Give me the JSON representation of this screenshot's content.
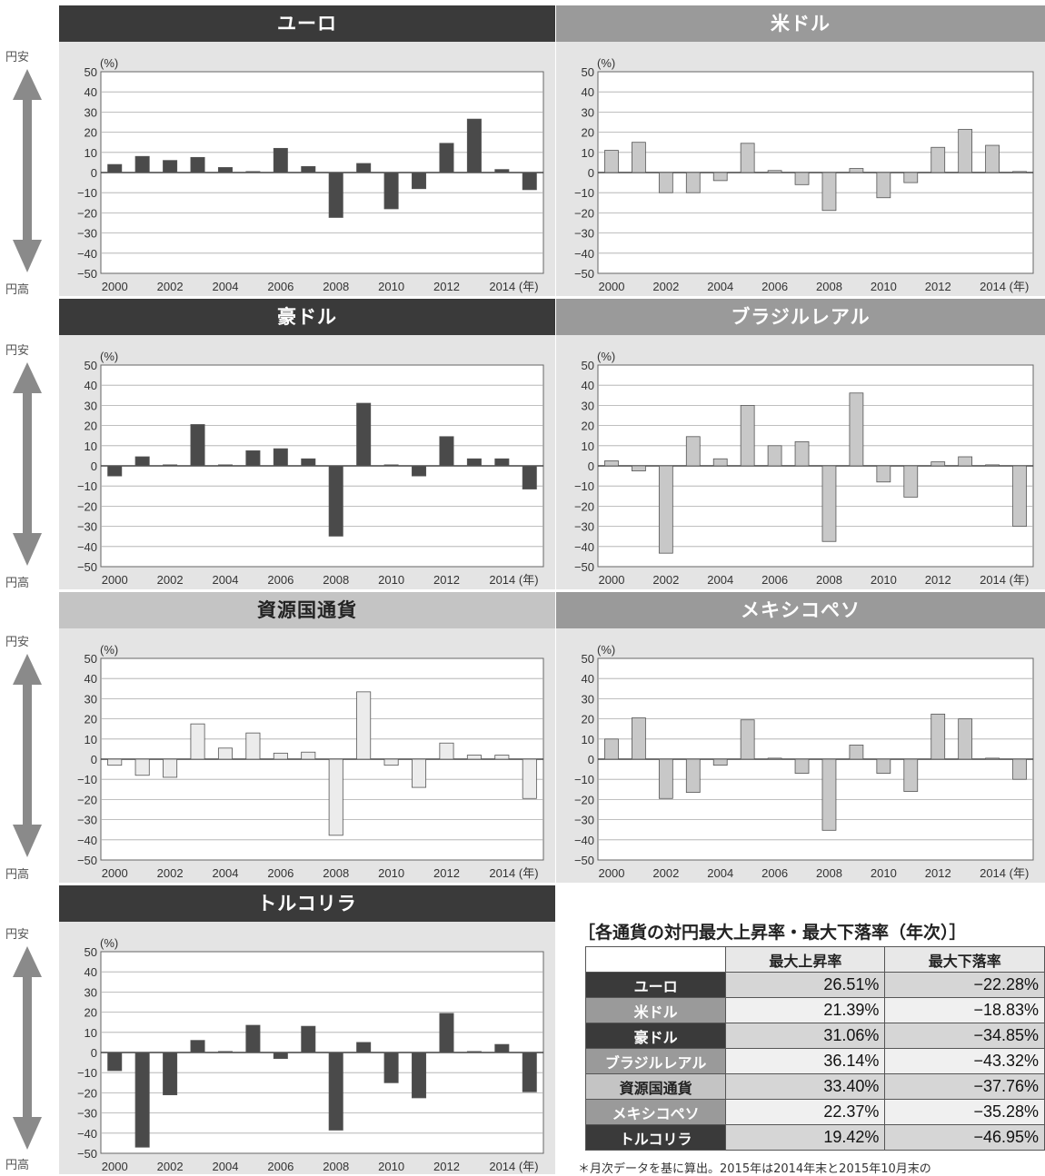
{
  "side": {
    "top": "円安",
    "bottom": "円高"
  },
  "chart_data": [
    {
      "type": "bar",
      "title": "ユーロ",
      "ylabel": "(%)",
      "xlabel": "(年)",
      "ylim": [
        -50,
        50
      ],
      "x": [
        2000,
        2001,
        2002,
        2003,
        2004,
        2005,
        2006,
        2007,
        2008,
        2009,
        2010,
        2011,
        2012,
        2013,
        2014,
        2015
      ],
      "values": [
        4,
        8,
        6,
        7.5,
        2.5,
        0.5,
        12,
        3,
        -22.28,
        4.5,
        -18,
        -8,
        14.5,
        26.51,
        1.5,
        -8.5
      ],
      "color": "#4a4a4a"
    },
    {
      "type": "bar",
      "title": "米ドル",
      "ylabel": "(%)",
      "xlabel": "(年)",
      "ylim": [
        -50,
        50
      ],
      "x": [
        2000,
        2001,
        2002,
        2003,
        2004,
        2005,
        2006,
        2007,
        2008,
        2009,
        2010,
        2011,
        2012,
        2013,
        2014,
        2015
      ],
      "values": [
        11,
        15,
        -10,
        -10,
        -4,
        14.5,
        1,
        -6,
        -18.83,
        2,
        -12.5,
        -5,
        12.5,
        21.39,
        13.5,
        0.5
      ],
      "color": "#c8c8c8"
    },
    {
      "type": "bar",
      "title": "豪ドル",
      "ylabel": "(%)",
      "xlabel": "(年)",
      "ylim": [
        -50,
        50
      ],
      "x": [
        2000,
        2001,
        2002,
        2003,
        2004,
        2005,
        2006,
        2007,
        2008,
        2009,
        2010,
        2011,
        2012,
        2013,
        2014,
        2015
      ],
      "values": [
        -5,
        4.5,
        0.5,
        20.5,
        0.5,
        7.5,
        8.5,
        3.5,
        -34.85,
        31.06,
        0.5,
        -5,
        14.5,
        3.5,
        3.5,
        -11.5
      ],
      "color": "#4a4a4a"
    },
    {
      "type": "bar",
      "title": "ブラジルレアル",
      "ylabel": "(%)",
      "xlabel": "(年)",
      "ylim": [
        -50,
        50
      ],
      "x": [
        2000,
        2001,
        2002,
        2003,
        2004,
        2005,
        2006,
        2007,
        2008,
        2009,
        2010,
        2011,
        2012,
        2013,
        2014,
        2015
      ],
      "values": [
        2.5,
        -2.5,
        -43.32,
        14.5,
        3.5,
        30,
        10,
        12,
        -37.5,
        36.14,
        -8,
        -15.5,
        2,
        4.5,
        0.5,
        -30
      ],
      "color": "#c8c8c8"
    },
    {
      "type": "bar",
      "title": "資源国通貨",
      "ylabel": "(%)",
      "xlabel": "(年)",
      "ylim": [
        -50,
        50
      ],
      "x": [
        2000,
        2001,
        2002,
        2003,
        2004,
        2005,
        2006,
        2007,
        2008,
        2009,
        2010,
        2011,
        2012,
        2013,
        2014,
        2015
      ],
      "values": [
        -3,
        -8,
        -9,
        17.5,
        5.5,
        13,
        3,
        3.5,
        -37.76,
        33.4,
        -3,
        -14,
        8,
        2,
        2,
        -19.5
      ],
      "color": "#ececec"
    },
    {
      "type": "bar",
      "title": "メキシコペソ",
      "ylabel": "(%)",
      "xlabel": "(年)",
      "ylim": [
        -50,
        50
      ],
      "x": [
        2000,
        2001,
        2002,
        2003,
        2004,
        2005,
        2006,
        2007,
        2008,
        2009,
        2010,
        2011,
        2012,
        2013,
        2014,
        2015
      ],
      "values": [
        10,
        20.5,
        -19.5,
        -16.5,
        -3,
        19.5,
        0.5,
        -7,
        -35.28,
        7,
        -7,
        -16,
        22.37,
        20,
        0.5,
        -10
      ],
      "color": "#c8c8c8"
    },
    {
      "type": "bar",
      "title": "トルコリラ",
      "ylabel": "(%)",
      "xlabel": "(年)",
      "ylim": [
        -50,
        50
      ],
      "x": [
        2000,
        2001,
        2002,
        2003,
        2004,
        2005,
        2006,
        2007,
        2008,
        2009,
        2010,
        2011,
        2012,
        2013,
        2014,
        2015
      ],
      "values": [
        -9,
        -46.95,
        -21,
        6,
        0.5,
        13.5,
        -3,
        13,
        -38.5,
        5,
        -15,
        -22.5,
        19.42,
        0.5,
        4,
        -19.5
      ],
      "color": "#4a4a4a"
    }
  ],
  "axis": {
    "x_ticks": [
      "2000",
      "2002",
      "2004",
      "2006",
      "2008",
      "2010",
      "2012",
      "2014 (年)"
    ],
    "y_ticks": [
      "50",
      "40",
      "30",
      "20",
      "10",
      "0",
      "−10",
      "−20",
      "−30",
      "−40",
      "−50"
    ]
  },
  "table": {
    "title": "［各通貨の対円最大上昇率・最大下落率（年次）］",
    "headers": [
      "",
      "最大上昇率",
      "最大下落率"
    ],
    "rows": [
      {
        "name": "ユーロ",
        "up": "26.51%",
        "down": "−22.28%",
        "name_bg": "#3a3a3a",
        "up_bg": "#d6d6d6",
        "down_bg": "#d6d6d6"
      },
      {
        "name": "米ドル",
        "up": "21.39%",
        "down": "−18.83%",
        "name_bg": "#9a9a9a",
        "up_bg": "#f0f0f0",
        "down_bg": "#f0f0f0"
      },
      {
        "name": "豪ドル",
        "up": "31.06%",
        "down": "−34.85%",
        "name_bg": "#3a3a3a",
        "up_bg": "#d6d6d6",
        "down_bg": "#d6d6d6"
      },
      {
        "name": "ブラジルレアル",
        "up": "36.14%",
        "down": "−43.32%",
        "name_bg": "#9a9a9a",
        "up_bg": "#f0f0f0",
        "down_bg": "#f0f0f0"
      },
      {
        "name": "資源国通貨",
        "up": "33.40%",
        "down": "−37.76%",
        "name_bg": "#c4c4c4",
        "up_bg": "#d6d6d6",
        "down_bg": "#d6d6d6"
      },
      {
        "name": "メキシコペソ",
        "up": "22.37%",
        "down": "−35.28%",
        "name_bg": "#9a9a9a",
        "up_bg": "#f0f0f0",
        "down_bg": "#f0f0f0"
      },
      {
        "name": "トルコリラ",
        "up": "19.42%",
        "down": "−46.95%",
        "name_bg": "#3a3a3a",
        "up_bg": "#d6d6d6",
        "down_bg": "#d6d6d6"
      }
    ]
  },
  "note": "＊月次データを基に算出。2015年は2014年末と2015年10月末の"
}
